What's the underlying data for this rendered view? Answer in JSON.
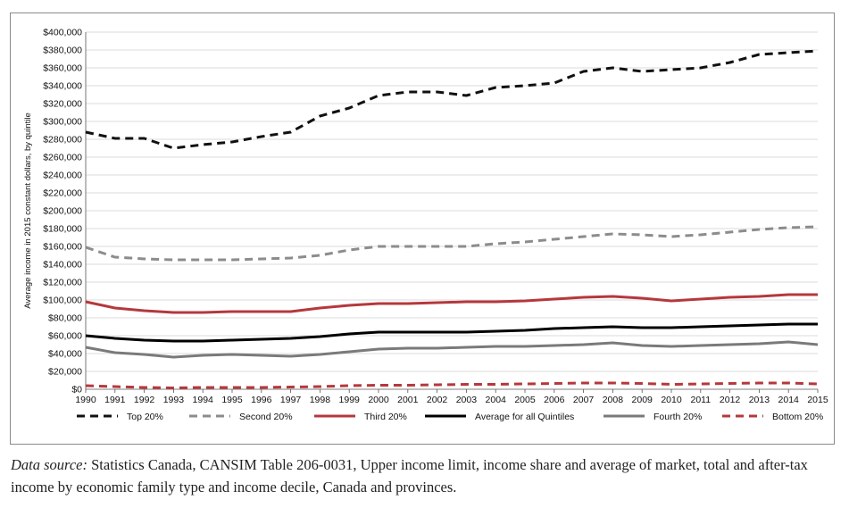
{
  "chart_data": {
    "type": "line",
    "title": "",
    "xlabel": "",
    "ylabel": "Average income in 2015 constant dollars, by quintile",
    "ylim": [
      0,
      400000
    ],
    "y_ticks": [
      "$0",
      "$20,000",
      "$40,000",
      "$60,000",
      "$80,000",
      "$100,000",
      "$120,000",
      "$140,000",
      "$160,000",
      "$180,000",
      "$200,000",
      "$220,000",
      "$240,000",
      "$260,000",
      "$280,000",
      "$300,000",
      "$320,000",
      "$340,000",
      "$360,000",
      "$380,000",
      "$400,000"
    ],
    "grid": true,
    "legend_position": "bottom",
    "x": [
      "1990",
      "1991",
      "1992",
      "1993",
      "1994",
      "1995",
      "1996",
      "1997",
      "1998",
      "1999",
      "2000",
      "2001",
      "2002",
      "2003",
      "2004",
      "2005",
      "2006",
      "2007",
      "2008",
      "2009",
      "2010",
      "2011",
      "2012",
      "2013",
      "2014",
      "2015"
    ],
    "series": [
      {
        "name": "Top 20%",
        "color": "#111111",
        "dash": "dashed",
        "values": [
          288000,
          281000,
          281000,
          270000,
          274000,
          277000,
          283000,
          288000,
          306000,
          315000,
          329000,
          333000,
          333000,
          329000,
          338000,
          340000,
          343000,
          356000,
          360000,
          356000,
          358000,
          360000,
          366000,
          375000,
          377000,
          379000
        ]
      },
      {
        "name": "Second 20%",
        "color": "#8c8c8c",
        "dash": "dashed",
        "values": [
          159000,
          148000,
          146000,
          145000,
          145000,
          145000,
          146000,
          147000,
          150000,
          156000,
          160000,
          160000,
          160000,
          160000,
          163000,
          165000,
          168000,
          171000,
          174000,
          173000,
          171000,
          173000,
          176000,
          179000,
          181000,
          182000
        ]
      },
      {
        "name": "Third 20%",
        "color": "#b5383d",
        "dash": "solid",
        "values": [
          98000,
          91000,
          88000,
          86000,
          86000,
          87000,
          87000,
          87000,
          91000,
          94000,
          96000,
          96000,
          97000,
          98000,
          98000,
          99000,
          101000,
          103000,
          104000,
          102000,
          99000,
          101000,
          103000,
          104000,
          106000,
          106000
        ]
      },
      {
        "name": "Average for all Quintiles",
        "color": "#000000",
        "dash": "solid",
        "values": [
          60000,
          57000,
          55000,
          54000,
          54000,
          55000,
          56000,
          57000,
          59000,
          62000,
          64000,
          64000,
          64000,
          64000,
          65000,
          66000,
          68000,
          69000,
          70000,
          69000,
          69000,
          70000,
          71000,
          72000,
          73000,
          73000
        ]
      },
      {
        "name": "Fourth 20%",
        "color": "#7a7a7a",
        "dash": "solid",
        "values": [
          47000,
          41000,
          39000,
          36000,
          38000,
          39000,
          38000,
          37000,
          39000,
          42000,
          45000,
          46000,
          46000,
          47000,
          48000,
          48000,
          49000,
          50000,
          52000,
          49000,
          48000,
          49000,
          50000,
          51000,
          53000,
          50000
        ]
      },
      {
        "name": "Bottom 20%",
        "color": "#b5383d",
        "dash": "dashed",
        "values": [
          4000,
          3000,
          2000,
          1500,
          2000,
          2000,
          2000,
          2500,
          3000,
          4000,
          4500,
          4500,
          5000,
          5500,
          5500,
          6000,
          6500,
          7000,
          7000,
          6500,
          5500,
          6000,
          6500,
          7000,
          7000,
          6000
        ]
      }
    ]
  },
  "source": {
    "label": "Data source:",
    "text": " Statistics Canada, CANSIM Table 206-0031, Upper income limit, income share and average of market, total and after-tax income by economic family type and income decile, Canada and provinces."
  }
}
